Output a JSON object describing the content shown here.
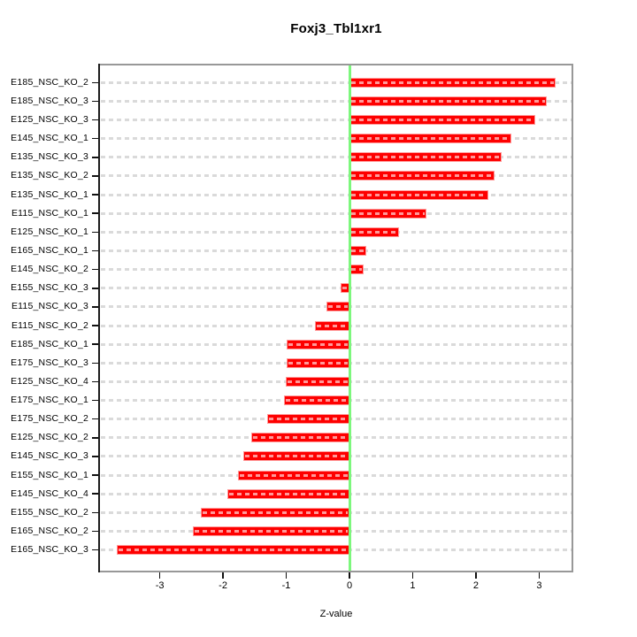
{
  "title": "Foxj3_Tbl1xr1",
  "chart_data": {
    "type": "bar",
    "orientation": "horizontal",
    "title": "Foxj3_Tbl1xr1",
    "xlabel": "Z-value",
    "ylabel": "",
    "xlim": [
      -3.96,
      3.54
    ],
    "x_ticks": [
      -3,
      -2,
      -1,
      0,
      1,
      2,
      3
    ],
    "grid": true,
    "legend": "none",
    "categories": [
      "E185_NSC_KO_2",
      "E185_NSC_KO_3",
      "E125_NSC_KO_3",
      "E145_NSC_KO_1",
      "E135_NSC_KO_3",
      "E135_NSC_KO_2",
      "E135_NSC_KO_1",
      "E115_NSC_KO_1",
      "E125_NSC_KO_1",
      "E165_NSC_KO_1",
      "E145_NSC_KO_2",
      "E155_NSC_KO_3",
      "E115_NSC_KO_3",
      "E115_NSC_KO_2",
      "E185_NSC_KO_1",
      "E175_NSC_KO_3",
      "E125_NSC_KO_4",
      "E175_NSC_KO_1",
      "E175_NSC_KO_2",
      "E125_NSC_KO_2",
      "E145_NSC_KO_3",
      "E155_NSC_KO_1",
      "E145_NSC_KO_4",
      "E155_NSC_KO_2",
      "E165_NSC_KO_2",
      "E165_NSC_KO_3"
    ],
    "values": [
      3.26,
      3.12,
      2.94,
      2.56,
      2.4,
      2.3,
      2.2,
      1.22,
      0.78,
      0.27,
      0.22,
      -0.14,
      -0.36,
      -0.55,
      -0.99,
      -1.0,
      -1.01,
      -1.03,
      -1.3,
      -1.55,
      -1.68,
      -1.76,
      -1.93,
      -2.35,
      -2.47,
      -3.68
    ]
  },
  "colors": {
    "bar": "#fe0000",
    "bar_border": "#ff9a9a",
    "zero_line": "#7df77d",
    "gridline": "#dadada",
    "box_border": "#989898",
    "axis_line": "#1c1c1c",
    "background": "#ffffff",
    "text": "#000000"
  }
}
